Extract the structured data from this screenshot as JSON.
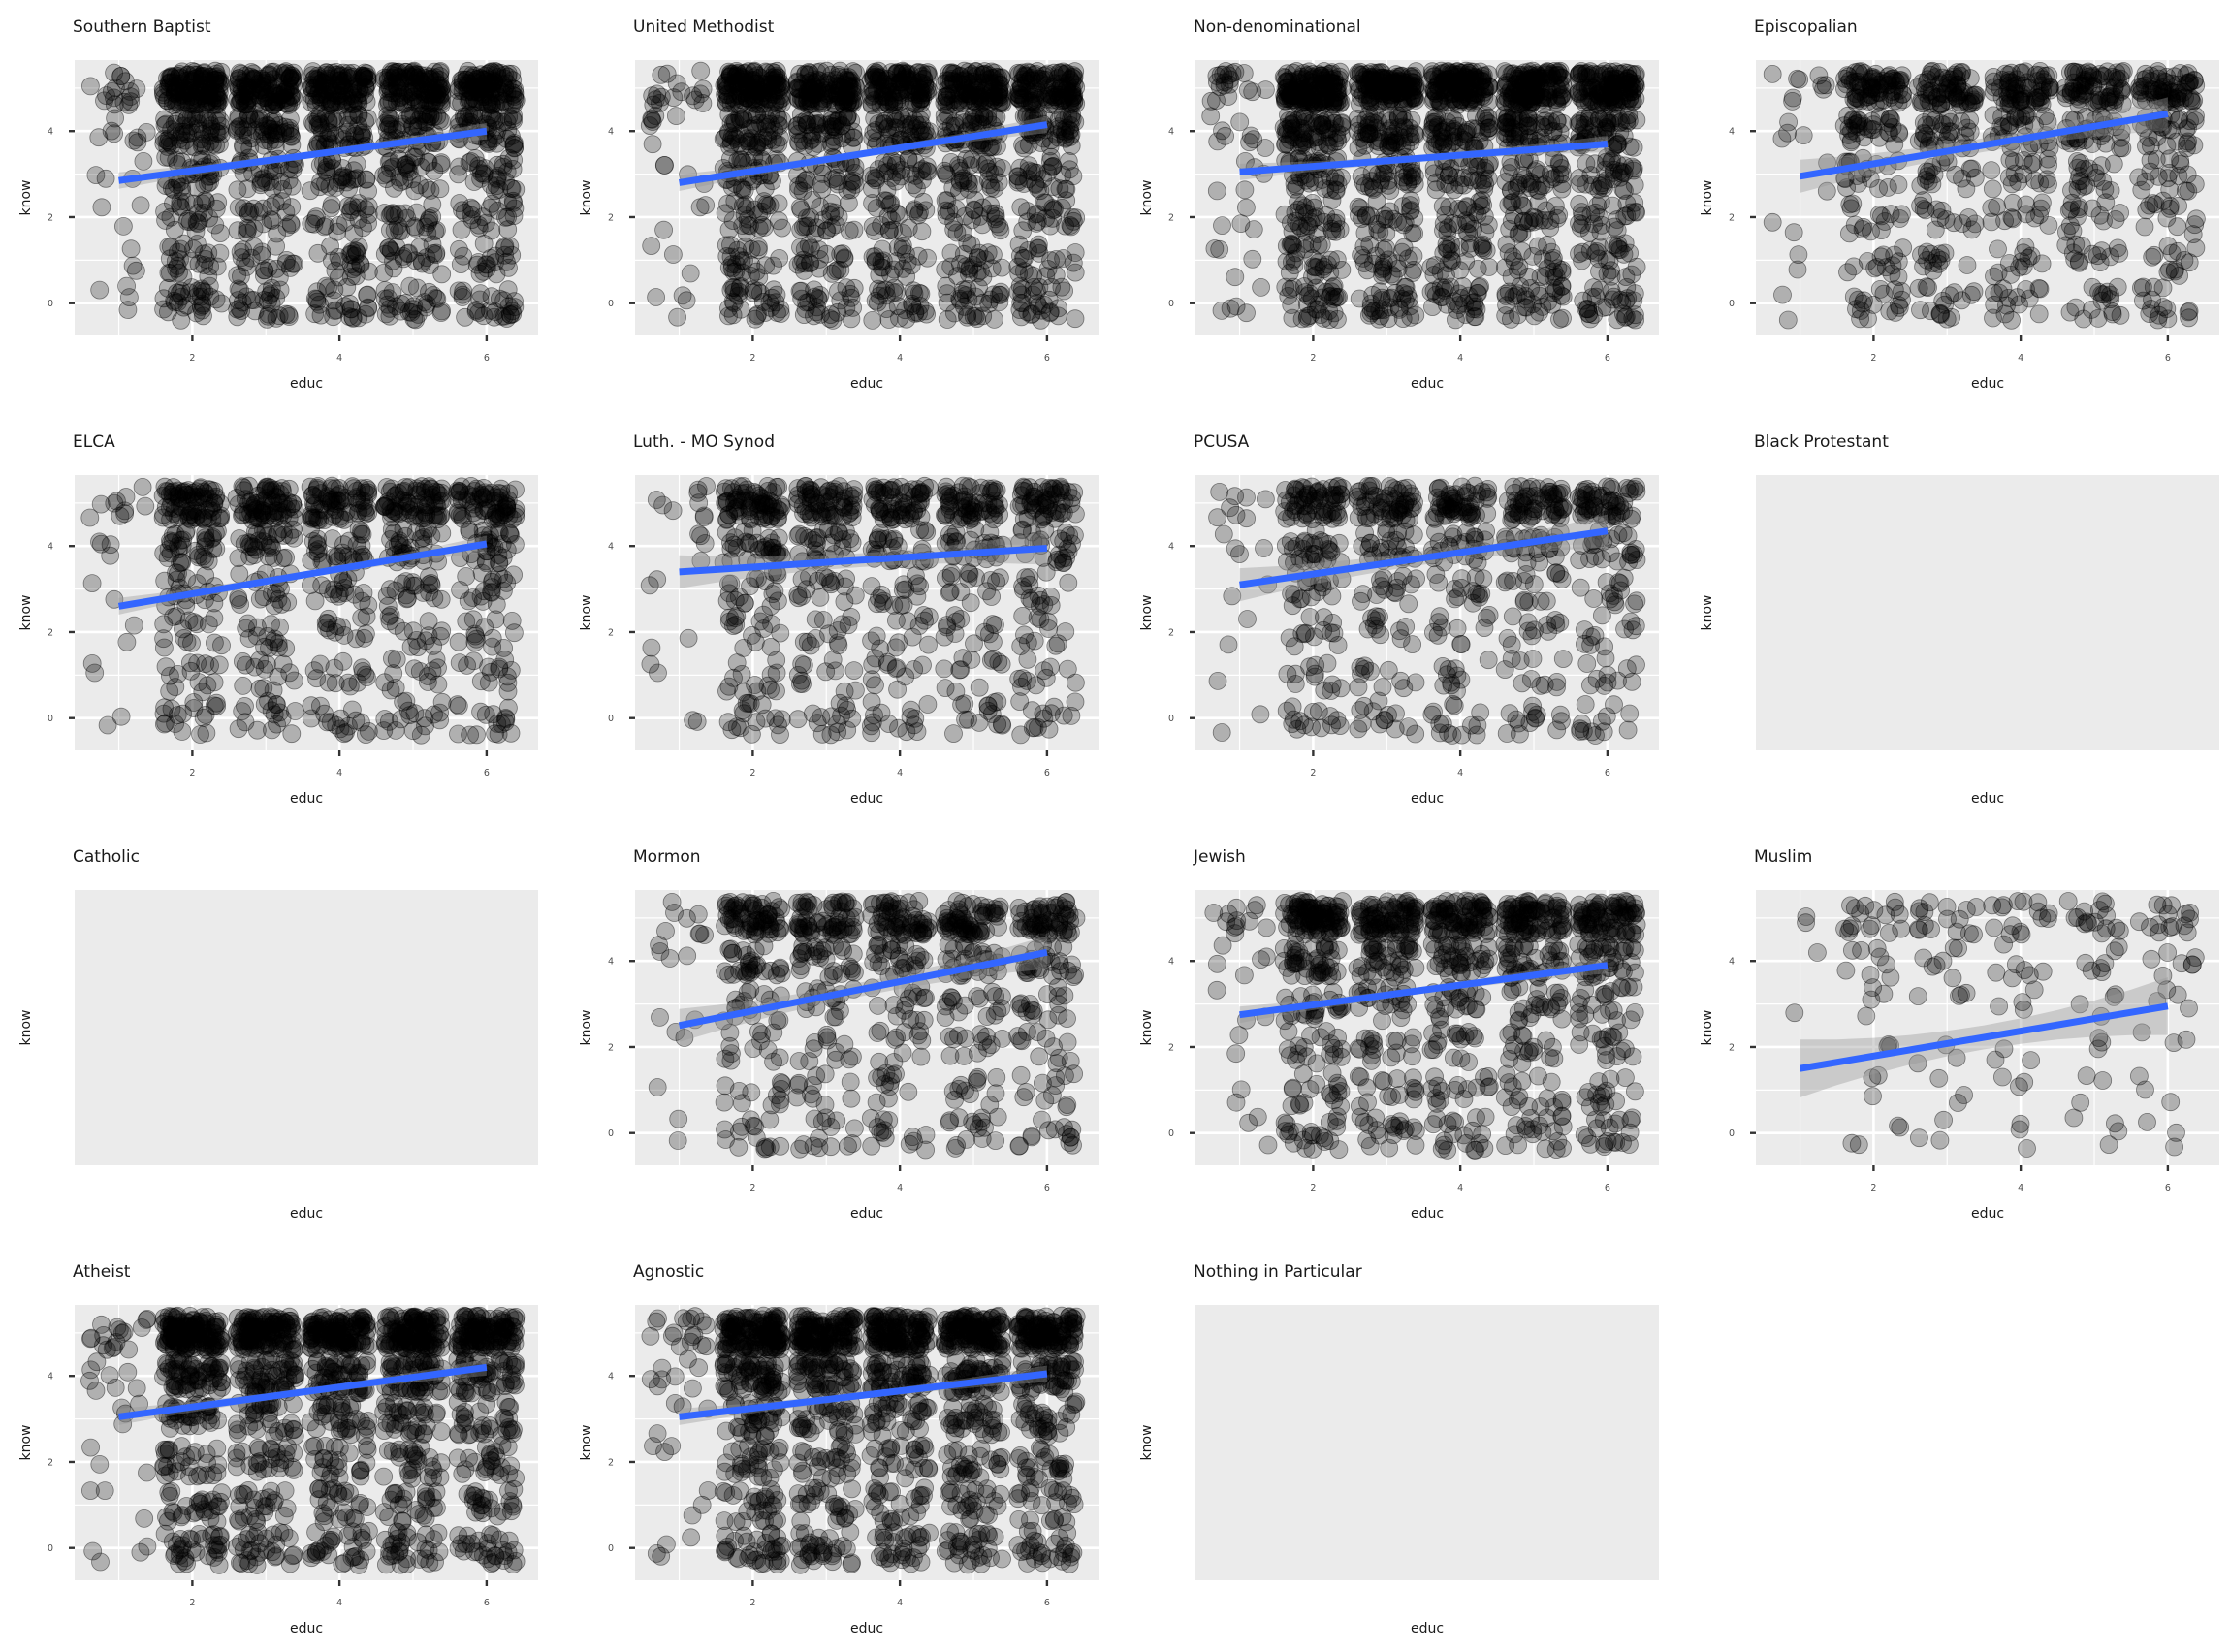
{
  "colors": {
    "panel_bg": "#ebebeb",
    "grid": "#ffffff",
    "point": "#000000",
    "fit_line": "#3366ff",
    "ribbon": "#999999"
  },
  "chart_data": {
    "type": "scatter",
    "xlabel": "educ",
    "ylabel": "know",
    "x_ticks": [
      2,
      4,
      6
    ],
    "y_ticks": [
      0,
      2,
      4
    ],
    "xlim": [
      0.4,
      6.7
    ],
    "ylim": [
      -0.75,
      5.65
    ],
    "point_alpha": 0.25,
    "jitter": true,
    "layout": {
      "columns": 4,
      "rows": 4
    },
    "facets": [
      {
        "title": "Southern Baptist",
        "empty": false,
        "density": 1.0,
        "fit": {
          "x": [
            1,
            6
          ],
          "y": [
            2.85,
            4.0
          ]
        }
      },
      {
        "title": "United Methodist",
        "empty": false,
        "density": 1.0,
        "fit": {
          "x": [
            1,
            6
          ],
          "y": [
            2.8,
            4.15
          ]
        }
      },
      {
        "title": "Non-denominational",
        "empty": false,
        "density": 1.15,
        "fit": {
          "x": [
            1,
            6
          ],
          "y": [
            3.05,
            3.7
          ]
        }
      },
      {
        "title": "Episcopalian",
        "empty": false,
        "density": 0.55,
        "fit": {
          "x": [
            1,
            6
          ],
          "y": [
            2.95,
            4.4
          ]
        }
      },
      {
        "title": "ELCA",
        "empty": false,
        "density": 0.6,
        "fit": {
          "x": [
            1,
            6
          ],
          "y": [
            2.6,
            4.05
          ]
        }
      },
      {
        "title": "Luth. - MO Synod",
        "empty": false,
        "density": 0.5,
        "fit": {
          "x": [
            1,
            6
          ],
          "y": [
            3.4,
            3.95
          ]
        }
      },
      {
        "title": "PCUSA",
        "empty": false,
        "density": 0.45,
        "fit": {
          "x": [
            1,
            6
          ],
          "y": [
            3.1,
            4.35
          ]
        }
      },
      {
        "title": "Black Protestant",
        "empty": true
      },
      {
        "title": "Catholic",
        "empty": true
      },
      {
        "title": "Mormon",
        "empty": false,
        "density": 0.5,
        "fit": {
          "x": [
            1,
            6
          ],
          "y": [
            2.5,
            4.2
          ]
        }
      },
      {
        "title": "Jewish",
        "empty": false,
        "density": 0.7,
        "fit": {
          "x": [
            1,
            6
          ],
          "y": [
            2.75,
            3.9
          ]
        }
      },
      {
        "title": "Muslim",
        "empty": false,
        "density": 0.15,
        "fit": {
          "x": [
            1,
            6
          ],
          "y": [
            1.5,
            2.95
          ]
        }
      },
      {
        "title": "Atheist",
        "empty": false,
        "density": 1.0,
        "fit": {
          "x": [
            1,
            6
          ],
          "y": [
            3.05,
            4.2
          ]
        }
      },
      {
        "title": "Agnostic",
        "empty": false,
        "density": 1.0,
        "fit": {
          "x": [
            1,
            6
          ],
          "y": [
            3.05,
            4.05
          ]
        }
      },
      {
        "title": "Nothing in Particular",
        "empty": true
      }
    ]
  }
}
